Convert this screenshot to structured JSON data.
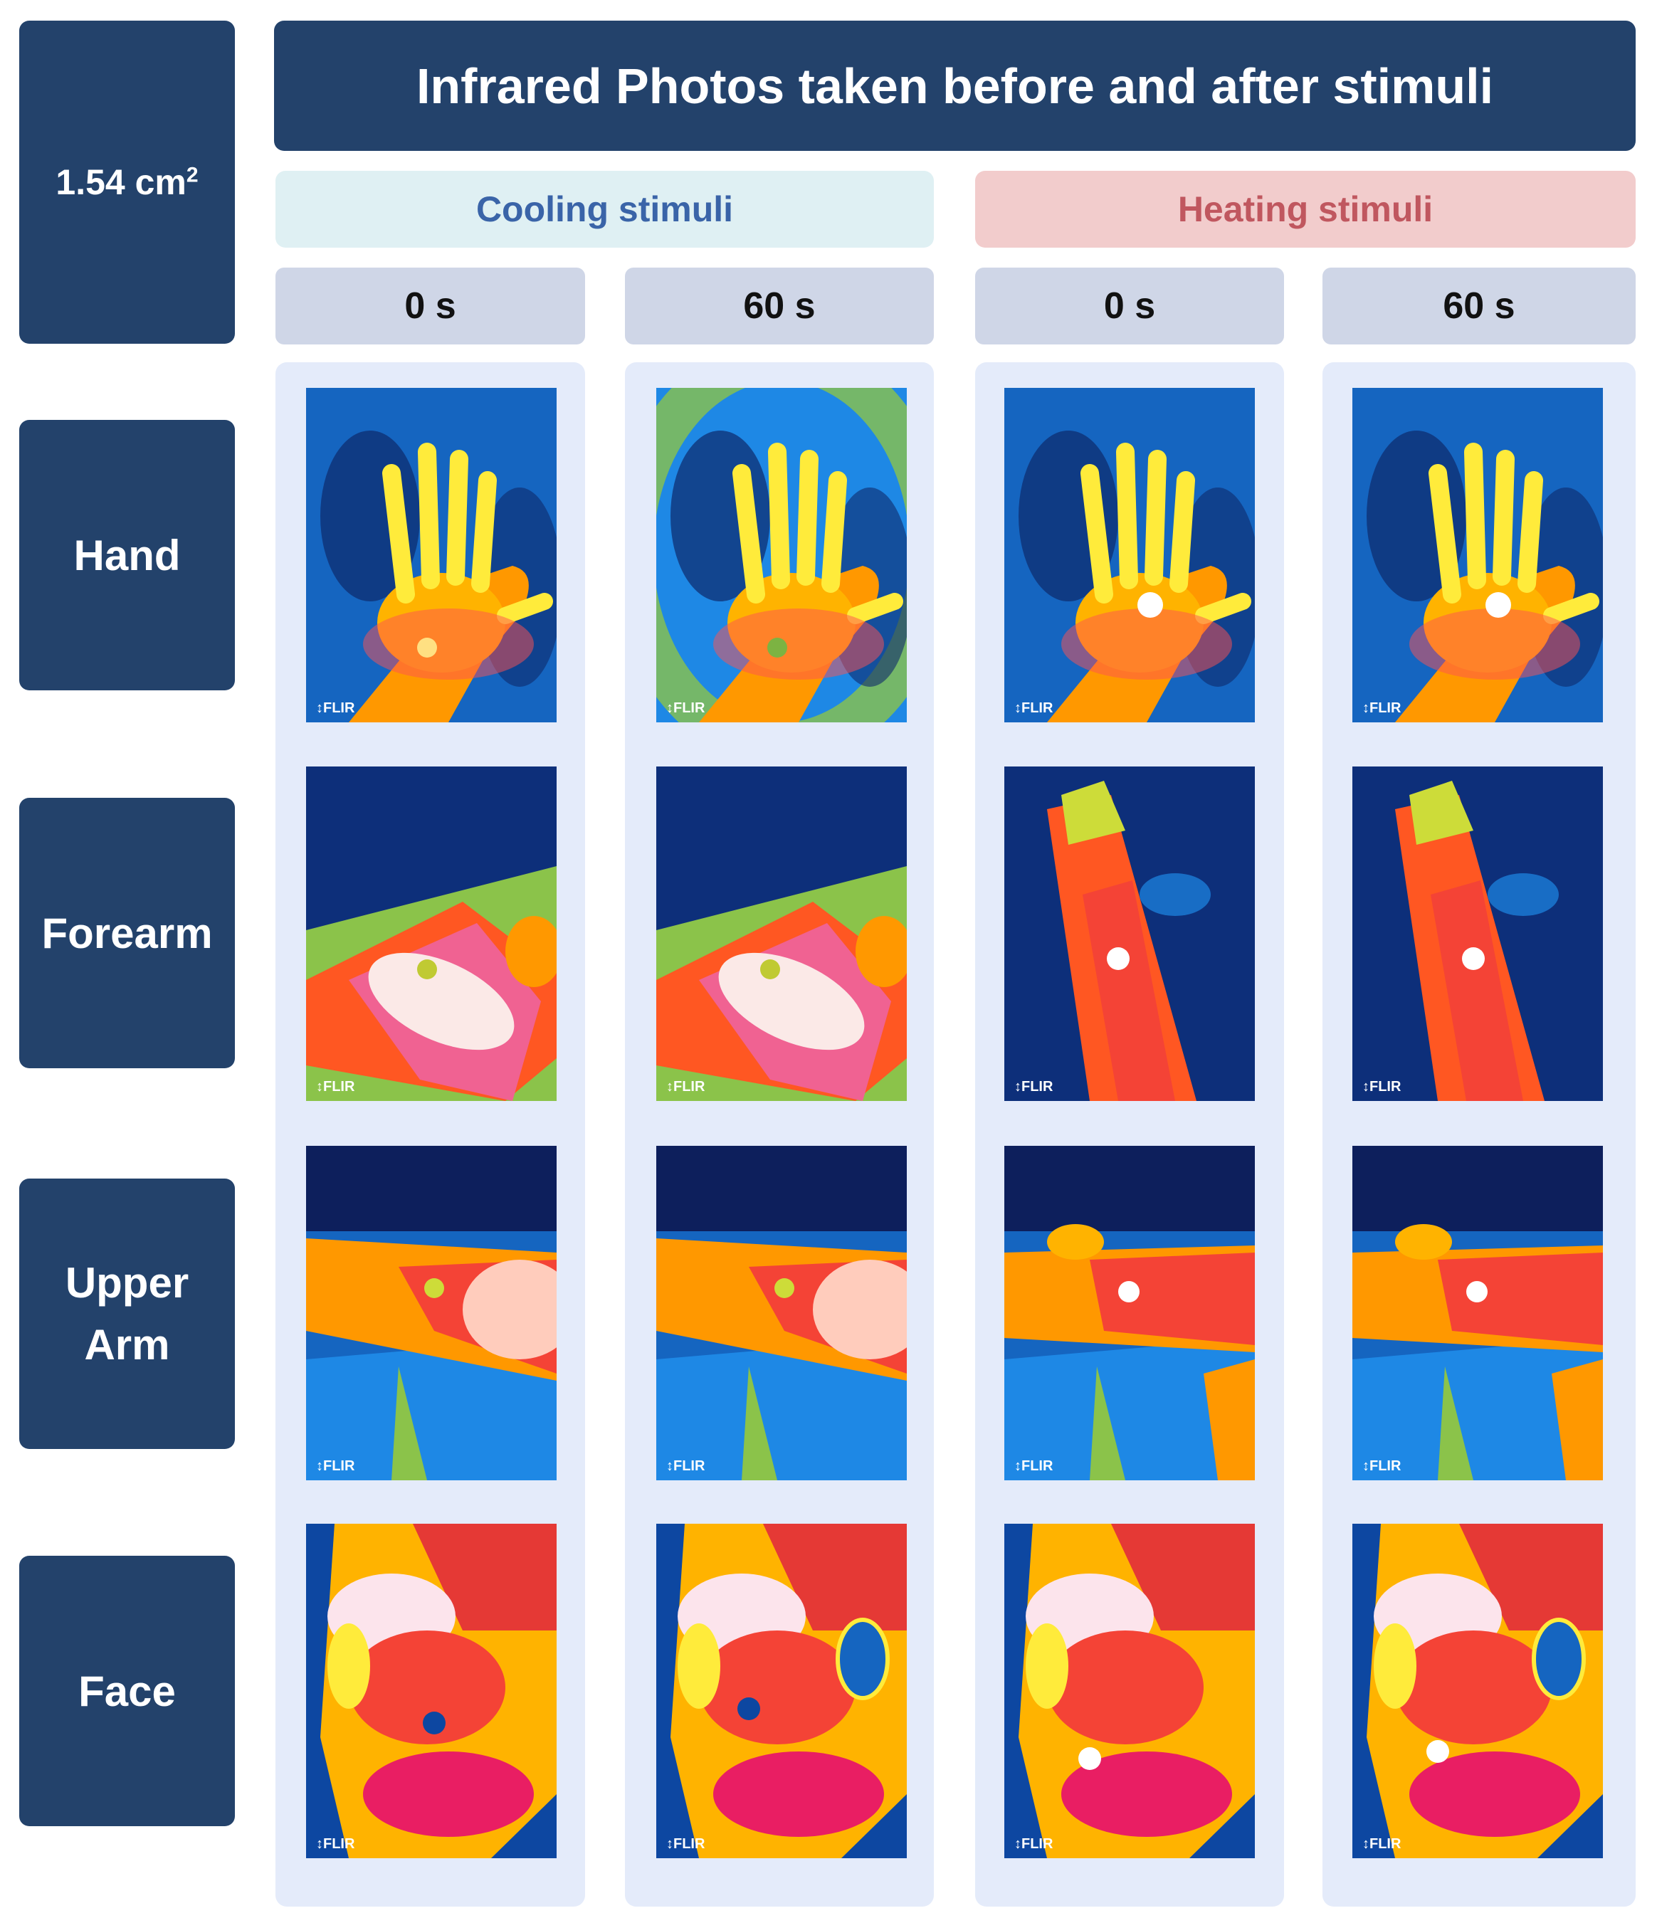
{
  "header": {
    "area": "1.54 cm",
    "area_sup": "2",
    "title": "Infrared Photos taken before and after stimuli"
  },
  "stimuli": {
    "cooling": "Cooling stimuli",
    "heating": "Heating stimuli"
  },
  "times": [
    "0 s",
    "60 s",
    "0 s",
    "60 s"
  ],
  "rows": [
    {
      "label_line1": "Hand",
      "label_line2": ""
    },
    {
      "label_line1": "Forearm",
      "label_line2": ""
    },
    {
      "label_line1": "Upper",
      "label_line2": "Arm"
    },
    {
      "label_line1": "Face",
      "label_line2": ""
    }
  ],
  "watermark": "FLIR",
  "colors": {
    "navy": "#23426b",
    "cooling_bg": "#dff0f3",
    "cooling_text": "#3a64a8",
    "heating_bg": "#f2cccc",
    "heating_text": "#c0575f",
    "time_bg": "#cfd6e7",
    "column_bg": "#e4ebfa"
  }
}
